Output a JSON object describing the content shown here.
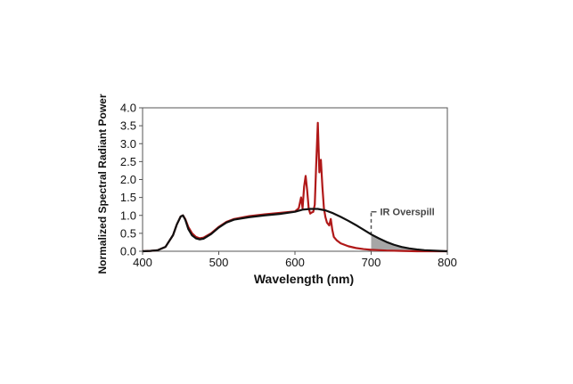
{
  "chart_data": {
    "type": "line",
    "title": "",
    "xlabel": "Wavelength (nm)",
    "ylabel": "Normalized Spectral Radiant Power",
    "xlim": [
      400,
      800
    ],
    "ylim": [
      0.0,
      4.0
    ],
    "x_ticks": [
      "400",
      "500",
      "600",
      "700",
      "800"
    ],
    "y_ticks": [
      "0.0",
      "0.5",
      "1.0",
      "1.5",
      "2.0",
      "2.5",
      "3.0",
      "3.5",
      "4.0"
    ],
    "grid": false,
    "legend": "none",
    "annotations": [
      {
        "text": "IR Overspill",
        "x": 700,
        "shaded_region": [
          700,
          800
        ]
      }
    ],
    "series": [
      {
        "color": "#b01818",
        "x": [
          400,
          410,
          420,
          430,
          440,
          445,
          450,
          453,
          456,
          460,
          465,
          470,
          475,
          480,
          490,
          500,
          510,
          520,
          540,
          560,
          580,
          595,
          600,
          605,
          608,
          610,
          612,
          614,
          616,
          618,
          620,
          622,
          624,
          626,
          628,
          630,
          632,
          634,
          636,
          638,
          640,
          642,
          645,
          647,
          649,
          651,
          655,
          660,
          670,
          680,
          690,
          700,
          720,
          740,
          760,
          780,
          800
        ],
        "values": [
          0.0,
          0.01,
          0.03,
          0.12,
          0.45,
          0.75,
          0.97,
          1.0,
          0.9,
          0.68,
          0.5,
          0.4,
          0.36,
          0.38,
          0.5,
          0.68,
          0.82,
          0.9,
          0.98,
          1.03,
          1.07,
          1.1,
          1.11,
          1.2,
          1.5,
          1.2,
          1.8,
          2.1,
          1.7,
          1.2,
          1.05,
          1.08,
          1.1,
          1.3,
          2.5,
          3.58,
          2.2,
          2.55,
          1.8,
          1.2,
          0.95,
          0.8,
          0.72,
          0.9,
          0.6,
          0.4,
          0.3,
          0.22,
          0.14,
          0.09,
          0.06,
          0.04,
          0.02,
          0.01,
          0.0,
          0.0,
          0.0
        ]
      },
      {
        "color": "#111111",
        "x": [
          400,
          410,
          420,
          430,
          440,
          445,
          450,
          453,
          456,
          460,
          465,
          470,
          475,
          480,
          490,
          500,
          510,
          520,
          540,
          560,
          580,
          600,
          610,
          620,
          630,
          640,
          650,
          660,
          670,
          680,
          690,
          700,
          710,
          720,
          730,
          740,
          750,
          760,
          770,
          780,
          790,
          800
        ],
        "values": [
          0.0,
          0.01,
          0.03,
          0.12,
          0.45,
          0.75,
          0.97,
          1.0,
          0.88,
          0.62,
          0.44,
          0.36,
          0.33,
          0.35,
          0.48,
          0.66,
          0.8,
          0.88,
          0.95,
          1.0,
          1.04,
          1.1,
          1.16,
          1.18,
          1.18,
          1.14,
          1.06,
          0.96,
          0.85,
          0.73,
          0.6,
          0.47,
          0.36,
          0.26,
          0.18,
          0.12,
          0.08,
          0.05,
          0.03,
          0.02,
          0.01,
          0.0
        ]
      }
    ]
  }
}
